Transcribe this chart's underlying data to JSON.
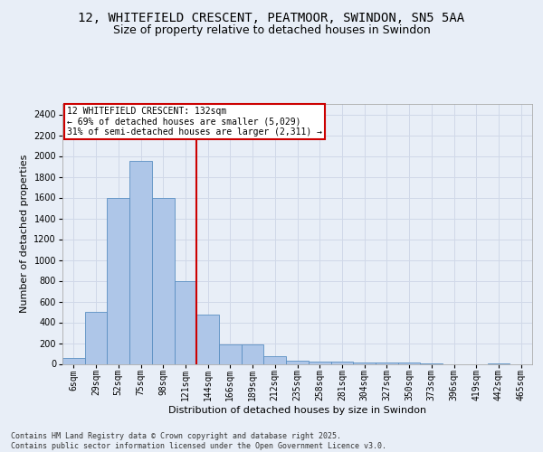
{
  "title_line1": "12, WHITEFIELD CRESCENT, PEATMOOR, SWINDON, SN5 5AA",
  "title_line2": "Size of property relative to detached houses in Swindon",
  "xlabel": "Distribution of detached houses by size in Swindon",
  "ylabel": "Number of detached properties",
  "footer": "Contains HM Land Registry data © Crown copyright and database right 2025.\nContains public sector information licensed under the Open Government Licence v3.0.",
  "bin_labels": [
    "6sqm",
    "29sqm",
    "52sqm",
    "75sqm",
    "98sqm",
    "121sqm",
    "144sqm",
    "166sqm",
    "189sqm",
    "212sqm",
    "235sqm",
    "258sqm",
    "281sqm",
    "304sqm",
    "327sqm",
    "350sqm",
    "373sqm",
    "396sqm",
    "419sqm",
    "442sqm",
    "465sqm"
  ],
  "bar_heights": [
    55,
    500,
    1600,
    1950,
    1600,
    800,
    470,
    190,
    190,
    70,
    30,
    20,
    20,
    10,
    10,
    10,
    5,
    0,
    0,
    5,
    0
  ],
  "bar_color": "#aec6e8",
  "bar_edge_color": "#5a8fc2",
  "annotation_text": "12 WHITEFIELD CRESCENT: 132sqm\n← 69% of detached houses are smaller (5,029)\n31% of semi-detached houses are larger (2,311) →",
  "annotation_box_color": "#ffffff",
  "annotation_box_edge": "#cc0000",
  "vline_color": "#cc0000",
  "ylim": [
    0,
    2500
  ],
  "yticks": [
    0,
    200,
    400,
    600,
    800,
    1000,
    1200,
    1400,
    1600,
    1800,
    2000,
    2200,
    2400
  ],
  "grid_color": "#d0d8e8",
  "bg_color": "#e8eef7",
  "plot_bg_color": "#e8eef7",
  "title_fontsize": 10,
  "subtitle_fontsize": 9,
  "axis_label_fontsize": 8,
  "tick_fontsize": 7,
  "footer_fontsize": 6
}
